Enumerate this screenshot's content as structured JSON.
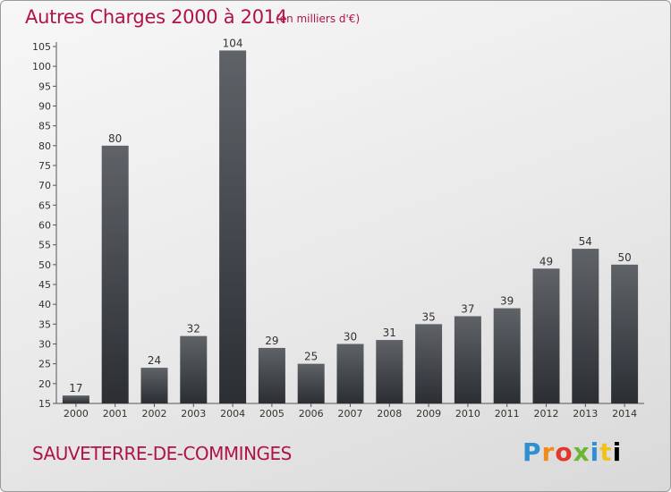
{
  "header": {
    "title": "Autres Charges 2000 à 2014",
    "subtitle": "(en milliers d'€)"
  },
  "footer": {
    "commune": "SAUVETERRE-DE-COMMINGES",
    "brand_letters": [
      "P",
      "r",
      "o",
      "x",
      "i",
      "t",
      "i"
    ]
  },
  "colors": {
    "accent": "#b0134a",
    "bar_top": "#5f6368",
    "bar_bottom": "#2b2e33"
  },
  "chart_data": {
    "type": "bar",
    "title": "Autres Charges 2000 à 2014",
    "subtitle": "(en milliers d'€)",
    "categories": [
      "2000",
      "2001",
      "2002",
      "2003",
      "2004",
      "2005",
      "2006",
      "2007",
      "2008",
      "2009",
      "2010",
      "2011",
      "2012",
      "2013",
      "2014"
    ],
    "values": [
      17,
      80,
      24,
      32,
      104,
      29,
      25,
      30,
      31,
      35,
      37,
      39,
      49,
      54,
      50
    ],
    "ylim": [
      15,
      105
    ],
    "yticks": [
      15,
      20,
      25,
      30,
      35,
      40,
      45,
      50,
      55,
      60,
      65,
      70,
      75,
      80,
      85,
      90,
      95,
      100,
      105
    ],
    "grid": false,
    "data_labels": true
  }
}
